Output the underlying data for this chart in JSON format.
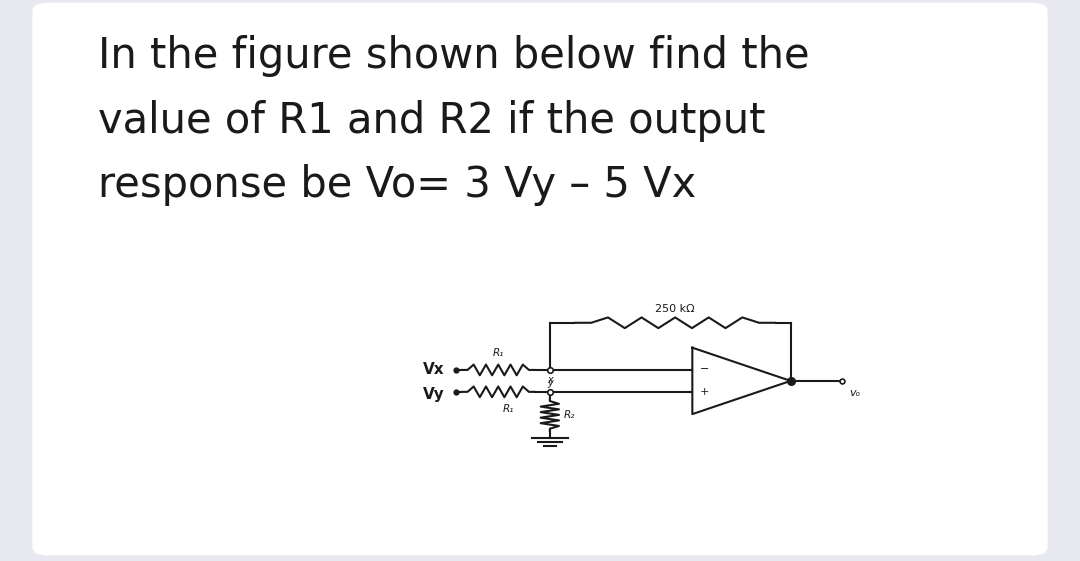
{
  "bg_color": "#e8e8f0",
  "card_color": "#ffffff",
  "text_line1": "In the figure shown below find the",
  "text_line2": "value of R1 and R2 if the output",
  "text_line3": "response be Vo= 3 Vy – 5 Vx",
  "text_color": "#1a1a1a",
  "text_fontsize": 30,
  "circuit_label_250k": "250 kΩ",
  "circuit_label_R1": "R₁",
  "circuit_label_R2": "R₂",
  "circuit_label_Vx": "Vx",
  "circuit_label_Vy": "Vy",
  "circuit_label_Vo": "vₒ",
  "lw": 1.5
}
